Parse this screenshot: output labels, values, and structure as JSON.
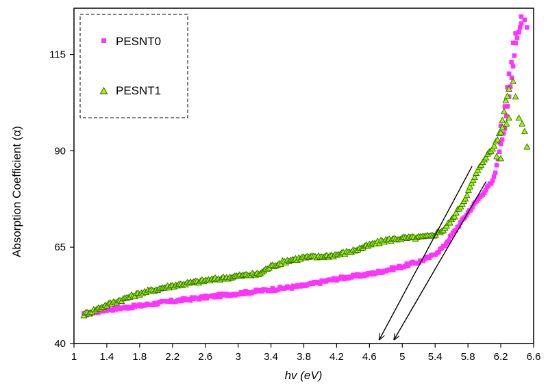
{
  "chart_data": {
    "type": "scatter",
    "xlabel": "hv (eV)",
    "ylabel": "Absorption Coefficient (α)",
    "xlim": [
      1,
      6.6
    ],
    "ylim": [
      40,
      127
    ],
    "x_ticks": [
      "1",
      "1.4",
      "1.8",
      "2.2",
      "2.6",
      "3",
      "3.4",
      "3.8",
      "4.2",
      "4.6",
      "5",
      "5.4",
      "5.8",
      "6.2",
      "6.6"
    ],
    "y_ticks": [
      "40",
      "65",
      "90",
      "115"
    ],
    "grid": false,
    "legend_position": "top-left",
    "series": [
      {
        "name": "PESNT0",
        "marker": "square",
        "color": "#ff33ff",
        "anchors": [
          [
            1.12,
            47.5
          ],
          [
            1.4,
            48.8
          ],
          [
            1.8,
            49.8
          ],
          [
            2.2,
            51.0
          ],
          [
            2.6,
            52.0
          ],
          [
            3.0,
            53.0
          ],
          [
            3.4,
            54.0
          ],
          [
            3.8,
            55.0
          ],
          [
            4.2,
            56.8
          ],
          [
            4.6,
            58.0
          ],
          [
            5.0,
            60.0
          ],
          [
            5.2,
            61.2
          ],
          [
            5.35,
            62.5
          ],
          [
            5.5,
            65.0
          ],
          [
            5.6,
            68.0
          ],
          [
            5.8,
            74.0
          ],
          [
            6.0,
            79.5
          ],
          [
            6.1,
            82.0
          ],
          [
            6.15,
            86.0
          ],
          [
            6.2,
            92.0
          ],
          [
            6.25,
            96.0
          ],
          [
            6.3,
            104.0
          ],
          [
            6.35,
            112.0
          ],
          [
            6.38,
            118.0
          ],
          [
            6.42,
            121.0
          ],
          [
            6.45,
            123.0
          ]
        ],
        "points": [
          [
            6.2,
            96.5
          ],
          [
            6.25,
            101.5
          ],
          [
            6.28,
            106.5
          ],
          [
            6.3,
            110.0
          ],
          [
            6.33,
            113.0
          ],
          [
            6.35,
            118.0
          ],
          [
            6.38,
            120.5
          ],
          [
            6.42,
            120.8
          ],
          [
            6.45,
            124.8
          ],
          [
            6.49,
            124.0
          ],
          [
            6.52,
            122.0
          ]
        ]
      },
      {
        "name": "PESNT1",
        "marker": "triangle",
        "color": "#99ff00",
        "anchors": [
          [
            1.12,
            47.5
          ],
          [
            1.4,
            50.0
          ],
          [
            1.8,
            53.0
          ],
          [
            2.2,
            55.0
          ],
          [
            2.6,
            56.3
          ],
          [
            3.0,
            57.5
          ],
          [
            3.25,
            58.0
          ],
          [
            3.4,
            60.0
          ],
          [
            3.6,
            61.5
          ],
          [
            3.8,
            62.3
          ],
          [
            4.0,
            62.5
          ],
          [
            4.2,
            63.0
          ],
          [
            4.4,
            64.0
          ],
          [
            4.6,
            65.5
          ],
          [
            4.8,
            66.8
          ],
          [
            5.0,
            67.3
          ],
          [
            5.2,
            67.5
          ],
          [
            5.35,
            67.8
          ],
          [
            5.5,
            69.5
          ],
          [
            5.6,
            72.0
          ],
          [
            5.75,
            77.0
          ],
          [
            5.9,
            84.0
          ],
          [
            6.0,
            88.0
          ],
          [
            6.1,
            90.5
          ],
          [
            6.2,
            95.0
          ],
          [
            6.26,
            103.0
          ],
          [
            6.3,
            106.0
          ]
        ],
        "points": [
          [
            6.15,
            88.5
          ],
          [
            6.2,
            88.0
          ],
          [
            6.22,
            96.0
          ],
          [
            6.27,
            97.0
          ],
          [
            6.3,
            98.5
          ],
          [
            6.35,
            108.0
          ],
          [
            6.38,
            104.0
          ],
          [
            6.42,
            98.5
          ],
          [
            6.46,
            97.0
          ],
          [
            6.49,
            95.0
          ],
          [
            6.52,
            91.0
          ]
        ]
      }
    ],
    "annotations": [
      {
        "type": "arrow",
        "from": [
          5.85,
          86.0
        ],
        "to": [
          4.72,
          41.0
        ]
      },
      {
        "type": "arrow",
        "from": [
          6.02,
          82.0
        ],
        "to": [
          4.9,
          41.0
        ]
      }
    ]
  }
}
